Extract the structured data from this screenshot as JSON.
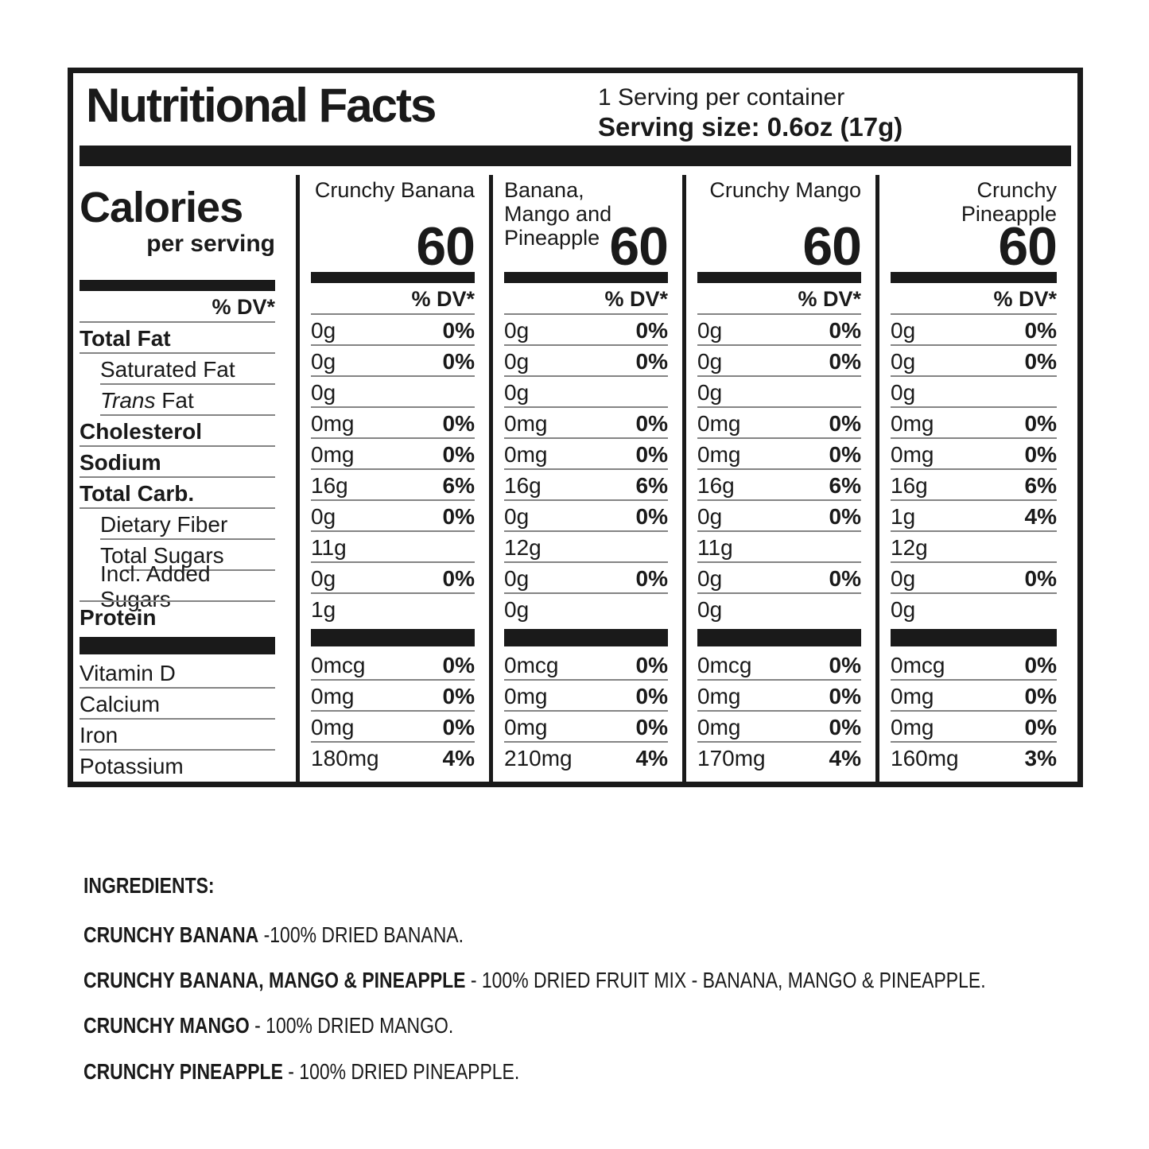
{
  "label": {
    "title": "Nutritional Facts",
    "servings_per_container": "1 Serving per container",
    "serving_size": "Serving size: 0.6oz (17g)",
    "calories_word": "Calories",
    "per_serving": "per serving",
    "dv_header": "% DV*",
    "columns": [
      {
        "name": "Crunchy Banana",
        "calories": "60"
      },
      {
        "name": "Banana, Mango and Pineapple",
        "calories": "60"
      },
      {
        "name": "Crunchy Mango",
        "calories": "60"
      },
      {
        "name": "Crunchy Pineapple",
        "calories": "60"
      }
    ],
    "rows": [
      {
        "label": "Total Fat",
        "cols": [
          {
            "amt": "0g",
            "dv": "0%"
          },
          {
            "amt": "0g",
            "dv": "0%"
          },
          {
            "amt": "0g",
            "dv": "0%"
          },
          {
            "amt": "0g",
            "dv": "0%"
          }
        ]
      },
      {
        "label": "Saturated Fat",
        "cols": [
          {
            "amt": "0g",
            "dv": "0%"
          },
          {
            "amt": "0g",
            "dv": "0%"
          },
          {
            "amt": "0g",
            "dv": "0%"
          },
          {
            "amt": "0g",
            "dv": "0%"
          }
        ]
      },
      {
        "label_italic": "Trans",
        "label": " Fat",
        "cols": [
          {
            "amt": "0g"
          },
          {
            "amt": "0g"
          },
          {
            "amt": "0g"
          },
          {
            "amt": "0g"
          }
        ]
      },
      {
        "label": "Cholesterol",
        "cols": [
          {
            "amt": "0mg",
            "dv": "0%"
          },
          {
            "amt": "0mg",
            "dv": "0%"
          },
          {
            "amt": "0mg",
            "dv": "0%"
          },
          {
            "amt": "0mg",
            "dv": "0%"
          }
        ]
      },
      {
        "label": "Sodium",
        "cols": [
          {
            "amt": "0mg",
            "dv": "0%"
          },
          {
            "amt": "0mg",
            "dv": "0%"
          },
          {
            "amt": "0mg",
            "dv": "0%"
          },
          {
            "amt": "0mg",
            "dv": "0%"
          }
        ]
      },
      {
        "label": "Total Carb.",
        "cols": [
          {
            "amt": "16g",
            "dv": "6%"
          },
          {
            "amt": "16g",
            "dv": "6%"
          },
          {
            "amt": "16g",
            "dv": "6%"
          },
          {
            "amt": "16g",
            "dv": "6%"
          }
        ]
      },
      {
        "label": "Dietary Fiber",
        "cols": [
          {
            "amt": "0g",
            "dv": "0%"
          },
          {
            "amt": "0g",
            "dv": "0%"
          },
          {
            "amt": "0g",
            "dv": "0%"
          },
          {
            "amt": "1g",
            "dv": "4%"
          }
        ]
      },
      {
        "label": "Total Sugars",
        "cols": [
          {
            "amt": "11g"
          },
          {
            "amt": "12g"
          },
          {
            "amt": "11g"
          },
          {
            "amt": "12g"
          }
        ]
      },
      {
        "label": "Incl. Added Sugars",
        "cols": [
          {
            "amt": "0g",
            "dv": "0%"
          },
          {
            "amt": "0g",
            "dv": "0%"
          },
          {
            "amt": "0g",
            "dv": "0%"
          },
          {
            "amt": "0g",
            "dv": "0%"
          }
        ]
      },
      {
        "label": "Protein",
        "cols": [
          {
            "amt": "1g"
          },
          {
            "amt": "0g"
          },
          {
            "amt": "0g"
          },
          {
            "amt": "0g"
          }
        ]
      },
      {
        "label": "Vitamin D",
        "cols": [
          {
            "amt": "0mcg",
            "dv": "0%"
          },
          {
            "amt": "0mcg",
            "dv": "0%"
          },
          {
            "amt": "0mcg",
            "dv": "0%"
          },
          {
            "amt": "0mcg",
            "dv": "0%"
          }
        ]
      },
      {
        "label": "Calcium",
        "cols": [
          {
            "amt": "0mg",
            "dv": "0%"
          },
          {
            "amt": "0mg",
            "dv": "0%"
          },
          {
            "amt": "0mg",
            "dv": "0%"
          },
          {
            "amt": "0mg",
            "dv": "0%"
          }
        ]
      },
      {
        "label": "Iron",
        "cols": [
          {
            "amt": "0mg",
            "dv": "0%"
          },
          {
            "amt": "0mg",
            "dv": "0%"
          },
          {
            "amt": "0mg",
            "dv": "0%"
          },
          {
            "amt": "0mg",
            "dv": "0%"
          }
        ]
      },
      {
        "label": "Potassium",
        "cols": [
          {
            "amt": "180mg",
            "dv": "4%"
          },
          {
            "amt": "210mg",
            "dv": "4%"
          },
          {
            "amt": "170mg",
            "dv": "4%"
          },
          {
            "amt": "160mg",
            "dv": "3%"
          }
        ]
      }
    ]
  },
  "ingredients": {
    "heading": "INGREDIENTS:",
    "items": [
      {
        "name": "CRUNCHY BANANA",
        "desc": " -100% DRIED BANANA."
      },
      {
        "name": "CRUNCHY BANANA, MANGO & PINEAPPLE",
        "desc": " - 100% DRIED FRUIT MIX - BANANA, MANGO & PINEAPPLE."
      },
      {
        "name": "CRUNCHY MANGO",
        "desc": " - 100% DRIED MANGO."
      },
      {
        "name": "CRUNCHY PINEAPPLE",
        "desc": " - 100% DRIED PINEAPPLE."
      }
    ]
  }
}
